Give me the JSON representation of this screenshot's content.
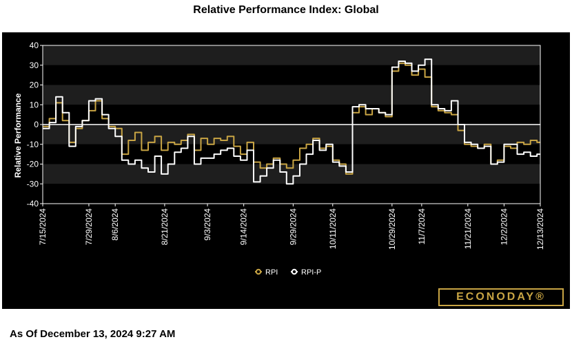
{
  "chart_data": {
    "type": "line",
    "title": "Relative Performance Index: Global",
    "ylabel": "Relative Performance",
    "xlabel": "",
    "ylim": [
      -40,
      40
    ],
    "yticks": [
      40,
      30,
      20,
      10,
      0,
      -10,
      -20,
      -30,
      -40
    ],
    "date_range": [
      "7/15/2024",
      "12/13/2024"
    ],
    "x_tick_labels": [
      "7/15/2024",
      "7/29/2024",
      "8/6/2024",
      "8/21/2024",
      "9/3/2024",
      "9/14/2024",
      "9/29/2024",
      "10/11/2024",
      "10/29/2024",
      "11/7/2024",
      "11/21/2024",
      "12/2/2024",
      "12/13/2024"
    ],
    "x_tick_positions": [
      0,
      14,
      22,
      37,
      50,
      61,
      76,
      88,
      106,
      115,
      129,
      140,
      151
    ],
    "series": [
      {
        "name": "RPI",
        "color": "#c9a544",
        "x": [
          0,
          2,
          4,
          6,
          8,
          10,
          12,
          14,
          16,
          18,
          20,
          22,
          24,
          26,
          28,
          30,
          32,
          34,
          36,
          38,
          40,
          42,
          44,
          46,
          48,
          50,
          52,
          54,
          56,
          58,
          60,
          62,
          64,
          66,
          68,
          70,
          72,
          74,
          76,
          78,
          80,
          82,
          84,
          86,
          88,
          90,
          92,
          94,
          96,
          98,
          100,
          102,
          104,
          106,
          108,
          110,
          112,
          114,
          116,
          118,
          120,
          122,
          124,
          126,
          128,
          130,
          132,
          134,
          136,
          138,
          140,
          142,
          144,
          146,
          148,
          150,
          151
        ],
        "values": [
          -1,
          3,
          11,
          2,
          -9,
          -2,
          2,
          7,
          12,
          3,
          -1,
          -2,
          -15,
          -8,
          -4,
          -13,
          -9,
          -6,
          -13,
          -9,
          -10,
          -8,
          -5,
          -13,
          -7,
          -10,
          -7,
          -8,
          -6,
          -11,
          -15,
          -9,
          -19,
          -22,
          -20,
          -17,
          -20,
          -22,
          -18,
          -12,
          -10,
          -7,
          -12,
          -11,
          -18,
          -20,
          -25,
          6,
          9,
          5,
          8,
          6,
          4,
          27,
          31,
          30,
          25,
          28,
          24,
          9,
          7,
          6,
          5,
          -3,
          -10,
          -11,
          -12,
          -10,
          -20,
          -18,
          -11,
          -12,
          -9,
          -10,
          -8,
          -9,
          -9
        ]
      },
      {
        "name": "RPI-P",
        "color": "#ffffff",
        "x": [
          0,
          2,
          4,
          6,
          8,
          10,
          12,
          14,
          16,
          18,
          20,
          22,
          24,
          26,
          28,
          30,
          32,
          34,
          36,
          38,
          40,
          42,
          44,
          46,
          48,
          50,
          52,
          54,
          56,
          58,
          60,
          62,
          64,
          66,
          68,
          70,
          72,
          74,
          76,
          78,
          80,
          82,
          84,
          86,
          88,
          90,
          92,
          94,
          96,
          98,
          100,
          102,
          104,
          106,
          108,
          110,
          112,
          114,
          116,
          118,
          120,
          122,
          124,
          126,
          128,
          130,
          132,
          134,
          136,
          138,
          140,
          142,
          144,
          146,
          148,
          150,
          151
        ],
        "values": [
          -2,
          1,
          14,
          6,
          -11,
          -1,
          2,
          12,
          13,
          5,
          -2,
          -6,
          -18,
          -20,
          -18,
          -22,
          -24,
          -16,
          -25,
          -20,
          -14,
          -12,
          -6,
          -20,
          -17,
          -17,
          -15,
          -13,
          -12,
          -16,
          -18,
          -13,
          -29,
          -26,
          -22,
          -18,
          -24,
          -30,
          -26,
          -20,
          -15,
          -8,
          -13,
          -10,
          -19,
          -21,
          -24,
          9,
          10,
          8,
          8,
          6,
          5,
          29,
          32,
          31,
          27,
          30,
          33,
          10,
          8,
          7,
          12,
          0,
          -9,
          -10,
          -12,
          -11,
          -20,
          -19,
          -10,
          -10,
          -15,
          -14,
          -16,
          -15,
          -15
        ]
      }
    ],
    "legend": [
      "RPI",
      "RPI-P"
    ],
    "legend_position": "bottom-center"
  },
  "branding": {
    "logo_text": "ECONODAY®"
  },
  "footer": {
    "as_of": "As Of December 13, 2024 9:27 AM"
  }
}
